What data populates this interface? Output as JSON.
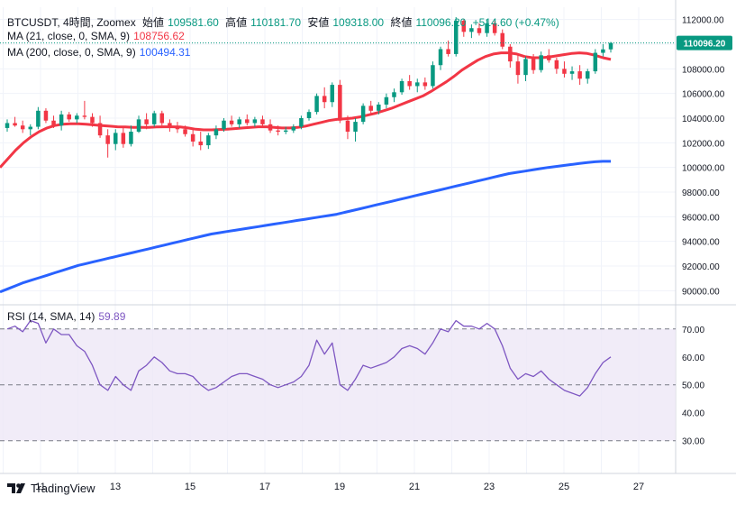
{
  "header": {
    "symbol_line": "BTCUSDT, 4時間, Zoomex",
    "open_label": "始値",
    "open": "109581.60",
    "high_label": "高値",
    "high": "110181.70",
    "low_label": "安値",
    "low": "109318.00",
    "close_label": "終値",
    "close": "110096.20",
    "change": "+514.60 (+0.47%)",
    "ma21_label": "MA (21, close, 0, SMA, 9)",
    "ma21_value": "108756.62",
    "ma200_label": "MA (200, close, 0, SMA, 9)",
    "ma200_value": "100494.31",
    "rsi_label": "RSI (14, SMA, 14)",
    "rsi_value": "59.89"
  },
  "price_tag": "110096.20",
  "brand": "TradingView",
  "colors": {
    "up": "#089981",
    "down": "#f23645",
    "ma21": "#f23645",
    "ma200": "#2962ff",
    "rsi": "#7e57c2",
    "rsi_band": "#ede7f6"
  },
  "chart_data": [
    {
      "type": "candlestick",
      "title": "BTCUSDT, 4時間, Zoomex",
      "ylim": [
        89000,
        113000
      ],
      "y_ticks": [
        "112000.00",
        "110000.00",
        "108000.00",
        "106000.00",
        "104000.00",
        "102000.00",
        "100000.00",
        "98000.00",
        "96000.00",
        "94000.00",
        "92000.00",
        "90000.00"
      ],
      "x_ticks": [
        "11",
        "13",
        "15",
        "17",
        "19",
        "21",
        "23",
        "25",
        "27"
      ],
      "candles": [
        [
          103200,
          103900,
          102900,
          103600
        ],
        [
          103600,
          104100,
          103300,
          103400
        ],
        [
          103400,
          103800,
          102800,
          103100
        ],
        [
          103100,
          103500,
          102600,
          103300
        ],
        [
          103300,
          104900,
          103100,
          104600
        ],
        [
          104600,
          104800,
          103600,
          103800
        ],
        [
          103800,
          104200,
          103200,
          103400
        ],
        [
          103400,
          104600,
          103000,
          104300
        ],
        [
          104300,
          104500,
          103700,
          103900
        ],
        [
          103900,
          104400,
          103600,
          104200
        ],
        [
          104200,
          105400,
          103900,
          104100
        ],
        [
          104100,
          104400,
          103300,
          103600
        ],
        [
          103600,
          104200,
          102400,
          102600
        ],
        [
          102600,
          103100,
          100800,
          101900
        ],
        [
          101900,
          103100,
          101400,
          102800
        ],
        [
          102800,
          103200,
          101600,
          101900
        ],
        [
          101900,
          103400,
          101700,
          102900
        ],
        [
          102900,
          104200,
          102800,
          103900
        ],
        [
          103900,
          104400,
          103100,
          103500
        ],
        [
          103500,
          104600,
          103300,
          104400
        ],
        [
          104400,
          104600,
          103400,
          103600
        ],
        [
          103600,
          103900,
          102900,
          103300
        ],
        [
          103300,
          103700,
          102800,
          103100
        ],
        [
          103100,
          103400,
          102500,
          102700
        ],
        [
          102700,
          103100,
          101700,
          102100
        ],
        [
          102100,
          102900,
          101400,
          101800
        ],
        [
          101800,
          102800,
          101500,
          102600
        ],
        [
          102600,
          103400,
          102300,
          103100
        ],
        [
          103100,
          104000,
          102900,
          103800
        ],
        [
          103800,
          104200,
          103300,
          103500
        ],
        [
          103500,
          104100,
          103200,
          103900
        ],
        [
          103900,
          104300,
          103400,
          103600
        ],
        [
          103600,
          104100,
          103300,
          103900
        ],
        [
          103900,
          104200,
          103300,
          103500
        ],
        [
          103500,
          103900,
          102800,
          103000
        ],
        [
          103000,
          103400,
          102600,
          102900
        ],
        [
          102900,
          103300,
          102700,
          103000
        ],
        [
          103000,
          103500,
          102800,
          103300
        ],
        [
          103300,
          104200,
          103100,
          104000
        ],
        [
          104000,
          104700,
          103800,
          104500
        ],
        [
          104500,
          106000,
          104300,
          105800
        ],
        [
          105800,
          106500,
          104800,
          105300
        ],
        [
          105300,
          106900,
          104900,
          106700
        ],
        [
          106700,
          107100,
          103600,
          103800
        ],
        [
          103800,
          104200,
          102300,
          102900
        ],
        [
          102900,
          104000,
          102100,
          103700
        ],
        [
          103700,
          105200,
          103500,
          105000
        ],
        [
          105000,
          105400,
          104300,
          104600
        ],
        [
          104600,
          105300,
          104300,
          105100
        ],
        [
          105100,
          106000,
          104800,
          105700
        ],
        [
          105700,
          106400,
          105300,
          106100
        ],
        [
          106100,
          107200,
          105900,
          107000
        ],
        [
          107000,
          107500,
          106300,
          106600
        ],
        [
          106600,
          107200,
          106100,
          106900
        ],
        [
          106900,
          107300,
          106300,
          106600
        ],
        [
          106600,
          108600,
          106400,
          108300
        ],
        [
          108300,
          109800,
          107900,
          109600
        ],
        [
          109600,
          110300,
          109000,
          109200
        ],
        [
          109200,
          112200,
          109000,
          111900
        ],
        [
          111900,
          112000,
          110600,
          111000
        ],
        [
          111000,
          111600,
          110500,
          111300
        ],
        [
          111300,
          111700,
          110700,
          110900
        ],
        [
          110900,
          112000,
          110600,
          111700
        ],
        [
          111700,
          111900,
          110700,
          110900
        ],
        [
          110900,
          111200,
          109600,
          109800
        ],
        [
          109800,
          110000,
          108100,
          108600
        ],
        [
          108600,
          109200,
          106800,
          107500
        ],
        [
          107500,
          109000,
          107000,
          108800
        ],
        [
          108800,
          109200,
          107600,
          107900
        ],
        [
          107900,
          109400,
          107700,
          109100
        ],
        [
          109100,
          109600,
          108500,
          108700
        ],
        [
          108700,
          108900,
          107600,
          108000
        ],
        [
          108000,
          108600,
          107300,
          107600
        ],
        [
          107600,
          108200,
          107100,
          107800
        ],
        [
          107800,
          108300,
          106700,
          107200
        ],
        [
          107200,
          108000,
          106800,
          107800
        ],
        [
          107800,
          109600,
          107600,
          109300
        ],
        [
          109300,
          110000,
          109000,
          109580
        ],
        [
          109580,
          110180,
          109320,
          110100
        ]
      ],
      "ma21": [
        100000,
        100700,
        101400,
        102000,
        102500,
        102900,
        103200,
        103400,
        103500,
        103550,
        103550,
        103500,
        103450,
        103400,
        103350,
        103300,
        103280,
        103250,
        103250,
        103250,
        103280,
        103300,
        103300,
        103280,
        103200,
        103100,
        103050,
        103050,
        103080,
        103100,
        103150,
        103200,
        103250,
        103300,
        103300,
        103250,
        103200,
        103200,
        103250,
        103350,
        103500,
        103650,
        103800,
        103900,
        103950,
        104000,
        104100,
        104250,
        104400,
        104600,
        104800,
        105050,
        105300,
        105550,
        105800,
        106150,
        106550,
        106950,
        107400,
        107900,
        108300,
        108700,
        109000,
        109200,
        109300,
        109300,
        109200,
        109000,
        108900,
        108900,
        108950,
        109050,
        109150,
        109250,
        109300,
        109250,
        109100,
        108900,
        108760
      ],
      "ma200": [
        89900,
        90150,
        90400,
        90650,
        90850,
        91050,
        91250,
        91450,
        91650,
        91850,
        92050,
        92200,
        92350,
        92500,
        92650,
        92800,
        92950,
        93100,
        93250,
        93400,
        93550,
        93700,
        93850,
        94000,
        94150,
        94300,
        94450,
        94600,
        94700,
        94800,
        94900,
        95000,
        95100,
        95200,
        95300,
        95400,
        95500,
        95600,
        95700,
        95800,
        95900,
        96000,
        96100,
        96200,
        96350,
        96500,
        96650,
        96800,
        96950,
        97100,
        97250,
        97400,
        97550,
        97700,
        97850,
        98000,
        98150,
        98300,
        98450,
        98600,
        98750,
        98900,
        99050,
        99200,
        99350,
        99500,
        99600,
        99700,
        99800,
        99900,
        100000,
        100080,
        100160,
        100240,
        100320,
        100400,
        100460,
        100494,
        100494
      ]
    },
    {
      "type": "line",
      "title": "RSI (14, SMA, 14)",
      "ylim": [
        27,
        78
      ],
      "y_ticks": [
        "70.00",
        "60.00",
        "50.00",
        "40.00",
        "30.00"
      ],
      "band": [
        30,
        70
      ],
      "midline": 50,
      "values": [
        70,
        71,
        69,
        73,
        72,
        65,
        70,
        68,
        68,
        64,
        62,
        57,
        50,
        48,
        53,
        50,
        48,
        55,
        57,
        60,
        58,
        55,
        54,
        54,
        53,
        50,
        48,
        49,
        51,
        53,
        54,
        54,
        53,
        52,
        50,
        49,
        50,
        51,
        53,
        57,
        66,
        61,
        65,
        50,
        48,
        52,
        57,
        56,
        57,
        58,
        60,
        63,
        64,
        63,
        61,
        65,
        70,
        69,
        73,
        71,
        71,
        70,
        72,
        70,
        64,
        56,
        52,
        54,
        53,
        55,
        52,
        50,
        48,
        47,
        46,
        49,
        54,
        58,
        60
      ]
    }
  ]
}
